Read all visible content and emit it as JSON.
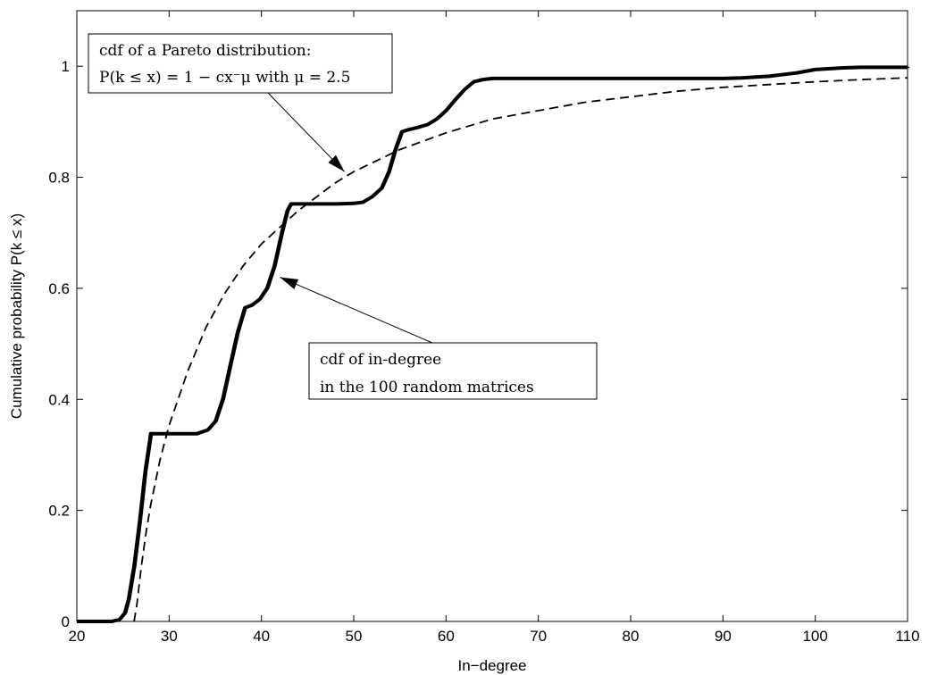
{
  "chart_data": {
    "type": "line",
    "xlabel": "In−degree",
    "ylabel": "Cumulative probability P(k ≤ x)",
    "xlim": [
      20,
      110
    ],
    "ylim": [
      0,
      1.1
    ],
    "x_ticks": [
      "20",
      "30",
      "40",
      "50",
      "60",
      "70",
      "80",
      "90",
      "100",
      "110"
    ],
    "y_ticks": [
      "0",
      "0.2",
      "0.4",
      "0.6",
      "0.8",
      "1"
    ],
    "grid": false,
    "series": [
      {
        "points": [
          [
            20,
            0
          ],
          [
            23.8,
            0
          ],
          [
            24.6,
            0.003
          ],
          [
            25.2,
            0.015
          ],
          [
            25.6,
            0.04
          ],
          [
            26.2,
            0.1
          ],
          [
            26.8,
            0.18
          ],
          [
            27.4,
            0.27
          ],
          [
            28,
            0.338
          ],
          [
            29,
            0.338
          ],
          [
            30,
            0.338
          ],
          [
            33,
            0.338
          ],
          [
            34.2,
            0.345
          ],
          [
            35,
            0.36
          ],
          [
            35.8,
            0.4
          ],
          [
            36.6,
            0.46
          ],
          [
            37.4,
            0.52
          ],
          [
            38.2,
            0.565
          ],
          [
            39,
            0.57
          ],
          [
            39.8,
            0.58
          ],
          [
            40.6,
            0.6
          ],
          [
            41.4,
            0.64
          ],
          [
            42.2,
            0.7
          ],
          [
            42.8,
            0.74
          ],
          [
            43.2,
            0.752
          ],
          [
            44,
            0.752
          ],
          [
            48,
            0.752
          ],
          [
            50,
            0.753
          ],
          [
            51,
            0.755
          ],
          [
            52,
            0.765
          ],
          [
            53,
            0.78
          ],
          [
            53.8,
            0.81
          ],
          [
            54.5,
            0.85
          ],
          [
            55.2,
            0.882
          ],
          [
            56,
            0.886
          ],
          [
            57,
            0.89
          ],
          [
            58,
            0.895
          ],
          [
            59,
            0.905
          ],
          [
            60,
            0.92
          ],
          [
            61,
            0.94
          ],
          [
            62,
            0.958
          ],
          [
            63,
            0.972
          ],
          [
            64,
            0.976
          ],
          [
            65,
            0.978
          ],
          [
            70,
            0.978
          ],
          [
            80,
            0.978
          ],
          [
            90,
            0.978
          ],
          [
            92,
            0.979
          ],
          [
            95,
            0.982
          ],
          [
            98,
            0.988
          ],
          [
            100,
            0.994
          ],
          [
            103,
            0.997
          ],
          [
            105,
            0.998
          ],
          [
            110,
            0.998
          ]
        ]
      },
      {
        "points": [
          [
            26.2,
            0
          ],
          [
            26.5,
            0.03
          ],
          [
            27,
            0.1
          ],
          [
            27.5,
            0.16
          ],
          [
            28,
            0.21
          ],
          [
            29,
            0.29
          ],
          [
            30,
            0.353
          ],
          [
            32,
            0.45
          ],
          [
            34,
            0.53
          ],
          [
            36,
            0.59
          ],
          [
            38,
            0.64
          ],
          [
            40,
            0.68
          ],
          [
            42,
            0.71
          ],
          [
            44,
            0.74
          ],
          [
            46,
            0.765
          ],
          [
            48,
            0.79
          ],
          [
            50,
            0.81
          ],
          [
            55,
            0.85
          ],
          [
            60,
            0.88
          ],
          [
            65,
            0.905
          ],
          [
            70,
            0.92
          ],
          [
            75,
            0.935
          ],
          [
            80,
            0.945
          ],
          [
            85,
            0.955
          ],
          [
            90,
            0.962
          ],
          [
            95,
            0.967
          ],
          [
            100,
            0.972
          ],
          [
            105,
            0.976
          ],
          [
            110,
            0.979
          ]
        ]
      }
    ],
    "annotations": [
      {
        "lines": [
          "cdf of a Pareto distribution:",
          "P(k ≤ x) = 1 − cx⁻μ with μ = 2.5"
        ],
        "arrow_to": [
          49,
          0.81
        ]
      },
      {
        "lines": [
          "cdf of in-degree",
          "in the 100 random matrices"
        ],
        "arrow_to": [
          42,
          0.62
        ]
      }
    ]
  }
}
